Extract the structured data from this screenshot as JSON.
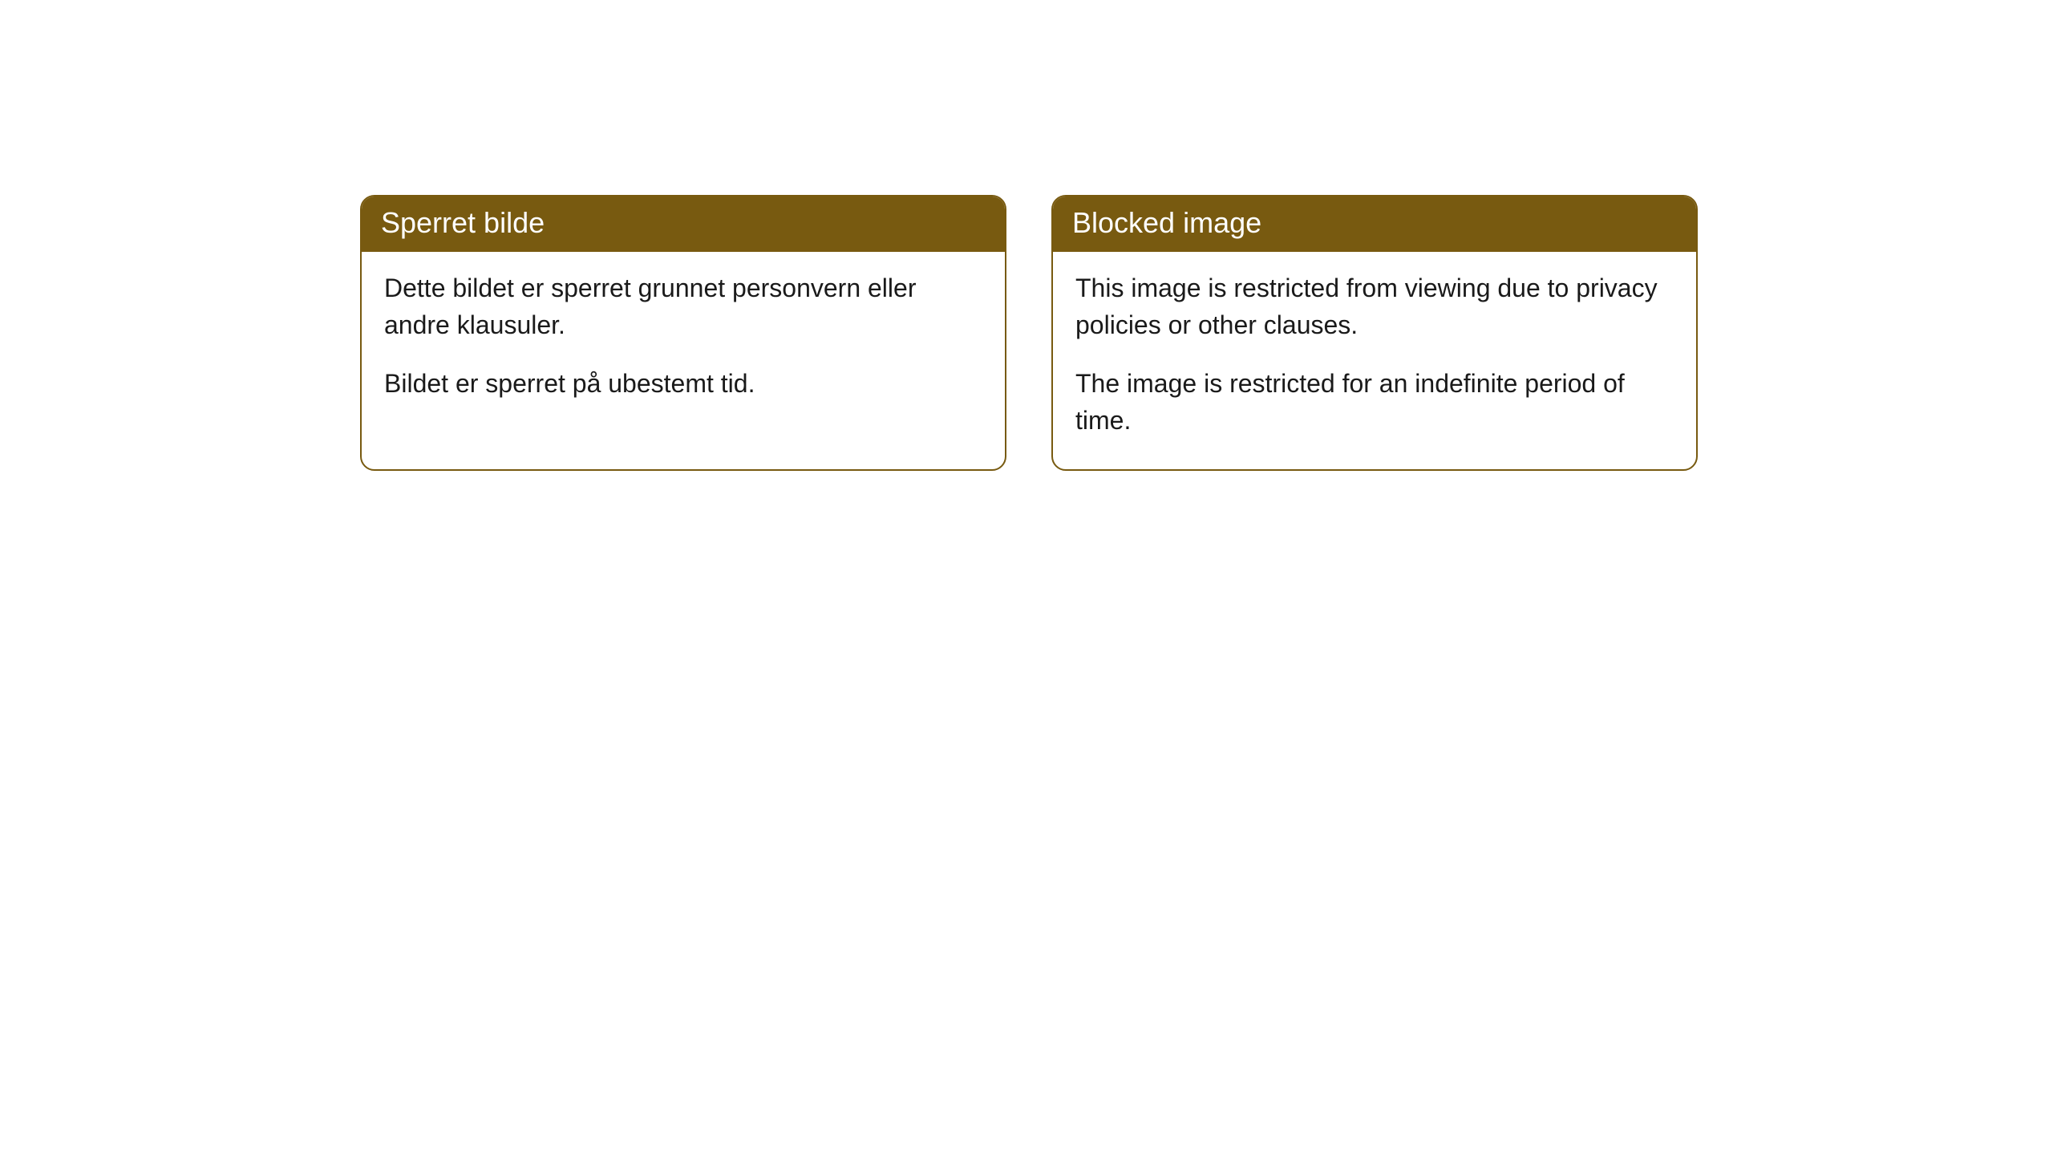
{
  "cards": [
    {
      "header": "Sperret bilde",
      "paragraph1": "Dette bildet er sperret grunnet personvern eller andre klausuler.",
      "paragraph2": "Bildet er sperret på ubestemt tid."
    },
    {
      "header": "Blocked image",
      "paragraph1": "This image is restricted from viewing due to privacy policies or other clauses.",
      "paragraph2": "The image is restricted for an indefinite period of time."
    }
  ],
  "style": {
    "header_bg_color": "#785a10",
    "header_text_color": "#ffffff",
    "border_color": "#785a10",
    "body_bg_color": "#ffffff",
    "body_text_color": "#1a1a1a",
    "border_radius": 18,
    "header_fontsize": 36,
    "body_fontsize": 32
  }
}
